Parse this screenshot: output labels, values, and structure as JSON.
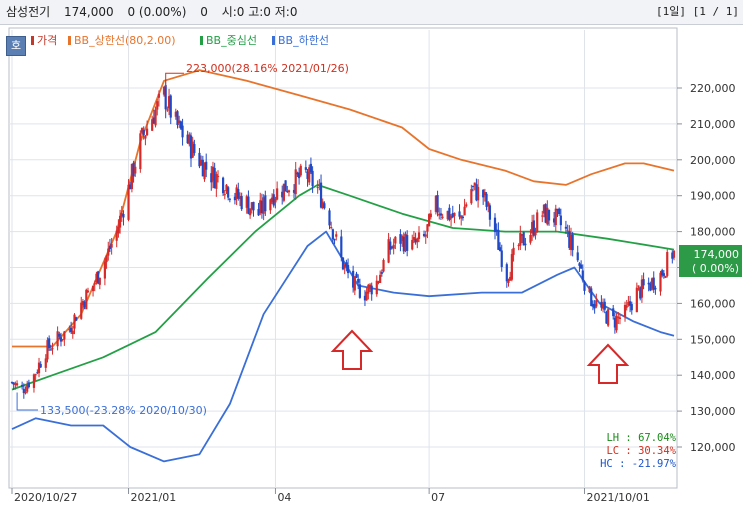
{
  "header": {
    "name": "삼성전기",
    "price": "174,000",
    "change": "0 (0.00%)",
    "volume": "0",
    "ohlc": "시:0 고:0 저:0",
    "period": "[1일]",
    "page": "[1 / 1]"
  },
  "h_button": "호",
  "legend": [
    {
      "label": "가격",
      "color": "#c0392b"
    },
    {
      "label": "BB_상한선(80,2.00)",
      "color": "#e8742c"
    },
    {
      "label": "BB_중심선",
      "color": "#23a046"
    },
    {
      "label": "BB_하한선",
      "color": "#3a6fd8"
    }
  ],
  "annotations": {
    "high": "223,000(28.16% 2021/01/26)",
    "low": "133,500(-23.28% 2020/10/30)"
  },
  "last_price": {
    "value": "174,000",
    "change": "( 0.00%)"
  },
  "stats": [
    {
      "key": "LH",
      "value": "67.04%",
      "color": "#1a8a1a"
    },
    {
      "key": "LC",
      "value": "30.34%",
      "color": "#d0301f"
    },
    {
      "key": "HC",
      "value": "-21.97%",
      "color": "#1c55c8"
    }
  ],
  "chart_data": {
    "type": "candlestick",
    "y_ticks": [
      {
        "value": 120000,
        "label": "120,000"
      },
      {
        "value": 130000,
        "label": "130,000"
      },
      {
        "value": 140000,
        "label": "140,000"
      },
      {
        "value": 150000,
        "label": "150,000"
      },
      {
        "value": 160000,
        "label": "160,000"
      },
      {
        "value": 170000,
        "label": "170,000"
      },
      {
        "value": 180000,
        "label": "180,000"
      },
      {
        "value": 190000,
        "label": "190,000"
      },
      {
        "value": 200000,
        "label": "200,000"
      },
      {
        "value": 210000,
        "label": "210,000"
      },
      {
        "value": 220000,
        "label": "220,000"
      }
    ],
    "x_ticks": [
      {
        "date": "2020-10-27",
        "label": "2020/10/27"
      },
      {
        "date": "2021-01-04",
        "label": "2021/01"
      },
      {
        "date": "2021-04-01",
        "label": "04"
      },
      {
        "date": "2021-07-01",
        "label": "07"
      },
      {
        "date": "2021-10-01",
        "label": "2021/10/01"
      }
    ],
    "x_range": [
      "2020-10-27",
      "2021-11-23"
    ],
    "ylim": [
      110000,
      235000
    ],
    "grid": true,
    "high_point": {
      "date": "2021-01-26",
      "value": 223000
    },
    "low_point": {
      "date": "2020-10-30",
      "value": 133500
    },
    "last_value": 174000,
    "price": [
      [
        "2020-10-27",
        138000
      ],
      [
        "2020-11-02",
        136000
      ],
      [
        "2020-11-09",
        140000
      ],
      [
        "2020-11-16",
        147000
      ],
      [
        "2020-11-23",
        150000
      ],
      [
        "2020-11-30",
        153000
      ],
      [
        "2020-12-07",
        160000
      ],
      [
        "2020-12-14",
        165000
      ],
      [
        "2020-12-21",
        172000
      ],
      [
        "2020-12-28",
        180000
      ],
      [
        "2021-01-04",
        192000
      ],
      [
        "2021-01-11",
        205000
      ],
      [
        "2021-01-18",
        212000
      ],
      [
        "2021-01-25",
        218000
      ],
      [
        "2021-02-01",
        210000
      ],
      [
        "2021-02-08",
        205000
      ],
      [
        "2021-02-15",
        200000
      ],
      [
        "2021-02-22",
        196000
      ],
      [
        "2021-03-01",
        194000
      ],
      [
        "2021-03-08",
        190000
      ],
      [
        "2021-03-15",
        188000
      ],
      [
        "2021-03-22",
        185000
      ],
      [
        "2021-03-29",
        190000
      ],
      [
        "2021-04-05",
        192000
      ],
      [
        "2021-04-12",
        194000
      ],
      [
        "2021-04-19",
        196000
      ],
      [
        "2021-04-26",
        192000
      ],
      [
        "2021-05-03",
        184000
      ],
      [
        "2021-05-10",
        172000
      ],
      [
        "2021-05-17",
        165000
      ],
      [
        "2021-05-24",
        163000
      ],
      [
        "2021-05-31",
        166000
      ],
      [
        "2021-06-07",
        175000
      ],
      [
        "2021-06-14",
        178000
      ],
      [
        "2021-06-21",
        176000
      ],
      [
        "2021-06-28",
        178000
      ],
      [
        "2021-07-05",
        187000
      ],
      [
        "2021-07-12",
        185000
      ],
      [
        "2021-07-19",
        183000
      ],
      [
        "2021-07-26",
        192000
      ],
      [
        "2021-08-02",
        190000
      ],
      [
        "2021-08-09",
        180000
      ],
      [
        "2021-08-16",
        168000
      ],
      [
        "2021-08-23",
        176000
      ],
      [
        "2021-08-30",
        180000
      ],
      [
        "2021-09-06",
        185000
      ],
      [
        "2021-09-13",
        184000
      ],
      [
        "2021-09-20",
        180000
      ],
      [
        "2021-09-27",
        172000
      ],
      [
        "2021-10-04",
        162000
      ],
      [
        "2021-10-11",
        158000
      ],
      [
        "2021-10-18",
        155000
      ],
      [
        "2021-10-25",
        157000
      ],
      [
        "2021-11-01",
        163000
      ],
      [
        "2021-11-08",
        165000
      ],
      [
        "2021-11-15",
        168000
      ],
      [
        "2021-11-22",
        174000
      ]
    ],
    "series": [
      {
        "name": "BB_상한선(80,2.00)",
        "color": "#e8742c",
        "values": [
          [
            "2020-10-27",
            148000
          ],
          [
            "2020-11-20",
            148000
          ],
          [
            "2020-12-07",
            157000
          ],
          [
            "2020-12-28",
            180000
          ],
          [
            "2021-01-11",
            205000
          ],
          [
            "2021-01-25",
            222000
          ],
          [
            "2021-02-15",
            225000
          ],
          [
            "2021-03-15",
            222000
          ],
          [
            "2021-04-15",
            218000
          ],
          [
            "2021-05-15",
            214000
          ],
          [
            "2021-06-15",
            209000
          ],
          [
            "2021-07-01",
            203000
          ],
          [
            "2021-07-20",
            200000
          ],
          [
            "2021-08-15",
            197000
          ],
          [
            "2021-09-01",
            194000
          ],
          [
            "2021-09-20",
            193000
          ],
          [
            "2021-10-05",
            196000
          ],
          [
            "2021-10-25",
            199000
          ],
          [
            "2021-11-05",
            199000
          ],
          [
            "2021-11-23",
            197000
          ]
        ]
      },
      {
        "name": "BB_중심선",
        "color": "#23a046",
        "values": [
          [
            "2020-10-27",
            136000
          ],
          [
            "2020-11-20",
            140000
          ],
          [
            "2020-12-20",
            145000
          ],
          [
            "2021-01-20",
            152000
          ],
          [
            "2021-02-20",
            167000
          ],
          [
            "2021-03-20",
            180000
          ],
          [
            "2021-04-15",
            190000
          ],
          [
            "2021-04-26",
            193000
          ],
          [
            "2021-05-15",
            190000
          ],
          [
            "2021-06-15",
            185000
          ],
          [
            "2021-07-15",
            181000
          ],
          [
            "2021-08-15",
            180000
          ],
          [
            "2021-09-15",
            180000
          ],
          [
            "2021-10-15",
            178000
          ],
          [
            "2021-11-23",
            175000
          ]
        ]
      },
      {
        "name": "BB_하한선",
        "color": "#3a6fd8",
        "values": [
          [
            "2020-10-27",
            125000
          ],
          [
            "2020-11-10",
            128000
          ],
          [
            "2020-12-01",
            126000
          ],
          [
            "2020-12-20",
            126000
          ],
          [
            "2021-01-05",
            120000
          ],
          [
            "2021-01-25",
            116000
          ],
          [
            "2021-02-15",
            118000
          ],
          [
            "2021-03-05",
            132000
          ],
          [
            "2021-03-25",
            157000
          ],
          [
            "2021-04-20",
            176000
          ],
          [
            "2021-05-01",
            180000
          ],
          [
            "2021-05-20",
            165000
          ],
          [
            "2021-06-10",
            163000
          ],
          [
            "2021-07-01",
            162000
          ],
          [
            "2021-08-01",
            163000
          ],
          [
            "2021-08-25",
            163000
          ],
          [
            "2021-09-15",
            168000
          ],
          [
            "2021-09-25",
            170000
          ],
          [
            "2021-10-10",
            160000
          ],
          [
            "2021-10-30",
            155000
          ],
          [
            "2021-11-15",
            152000
          ],
          [
            "2021-11-23",
            151000
          ]
        ]
      }
    ]
  }
}
